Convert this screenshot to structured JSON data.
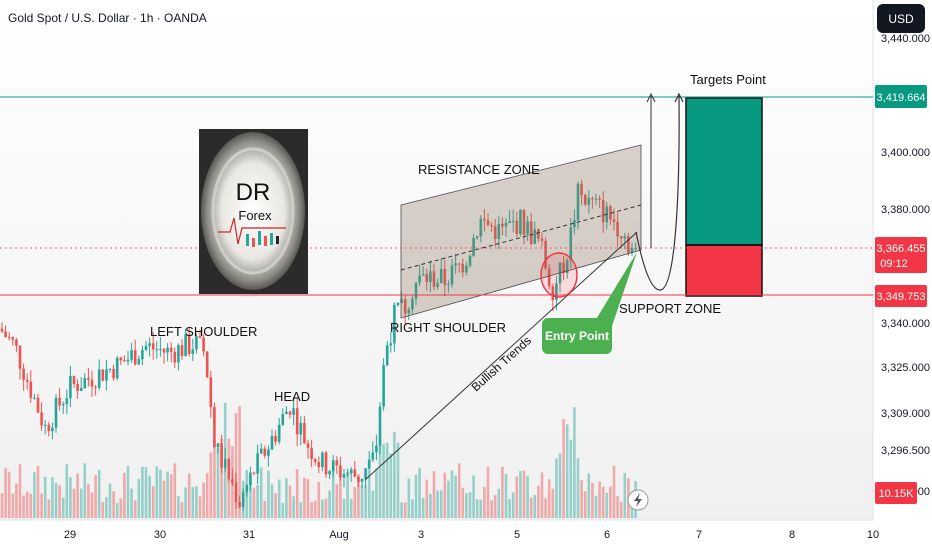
{
  "header": {
    "title": "Gold Spot / U.S. Dollar · 1h · OANDA",
    "currency_button": "USD"
  },
  "price_axis": {
    "ticks": [
      3440.0,
      3400.0,
      3380.0,
      3340.0,
      3325.0,
      3309.0,
      3296.5,
      3282.0
    ],
    "tick_labels": [
      "3,440.000",
      "3,400.000",
      "3,380.000",
      "3,340.000",
      "3,325.000",
      "3,309.000",
      "3,296.500",
      "3,282.000"
    ],
    "target_label": "3,419.664",
    "current_label": "3,366.455",
    "countdown": "09:12",
    "support_label": "3,349.753",
    "volume_label": "10.15K"
  },
  "time_axis": {
    "labels": [
      "29",
      "30",
      "31",
      "Aug",
      "3",
      "5",
      "6",
      "7",
      "8",
      "10"
    ]
  },
  "annotations": {
    "resistance_zone": "RESISTANCE ZONE",
    "support_zone": "SUPPORT ZONE",
    "left_shoulder": "LEFT SHOULDER",
    "head": "HEAD",
    "right_shoulder": "RIGHT SHOULDER",
    "bullish_trends": "Bullish Trends",
    "entry_point": "Entry Point",
    "targets_point": "Targets Point"
  },
  "logo": {
    "line1": "DR",
    "line2": "Forex"
  },
  "colors": {
    "up": "#26a69a",
    "down": "#ef5350",
    "target_box": "#089981",
    "stop_box": "#f23645",
    "entry_callout": "#4caf50",
    "zone_fill": "#b4a794",
    "background_top": "#ffffff",
    "background_bottom": "#f0f0f0"
  },
  "chart_data": {
    "type": "candlestick",
    "symbol": "Gold Spot / U.S. Dollar",
    "timeframe": "1h",
    "source": "OANDA",
    "target_price": 3419.664,
    "current_price": 3366.455,
    "support_price": 3349.753,
    "pattern": [
      "LEFT SHOULDER",
      "HEAD",
      "RIGHT SHOULDER"
    ],
    "zones": [
      "RESISTANCE ZONE",
      "SUPPORT ZONE"
    ],
    "keyframes": [
      [
        0,
        3338
      ],
      [
        15,
        3332
      ],
      [
        30,
        3318
      ],
      [
        45,
        3304
      ],
      [
        70,
        3318
      ],
      [
        95,
        3322
      ],
      [
        120,
        3326
      ],
      [
        145,
        3332
      ],
      [
        170,
        3330
      ],
      [
        195,
        3333
      ],
      [
        205,
        3330
      ],
      [
        215,
        3298
      ],
      [
        230,
        3286
      ],
      [
        240,
        3278
      ],
      [
        255,
        3290
      ],
      [
        275,
        3302
      ],
      [
        290,
        3312
      ],
      [
        305,
        3300
      ],
      [
        320,
        3292
      ],
      [
        340,
        3289
      ],
      [
        360,
        3287
      ],
      [
        375,
        3294
      ],
      [
        385,
        3330
      ],
      [
        395,
        3343
      ],
      [
        405,
        3346
      ],
      [
        415,
        3354
      ],
      [
        425,
        3356
      ],
      [
        445,
        3355
      ],
      [
        465,
        3362
      ],
      [
        480,
        3376
      ],
      [
        500,
        3372
      ],
      [
        520,
        3376
      ],
      [
        540,
        3368
      ],
      [
        552,
        3352
      ],
      [
        560,
        3357
      ],
      [
        568,
        3366
      ],
      [
        578,
        3385
      ],
      [
        600,
        3380
      ],
      [
        620,
        3374
      ],
      [
        635,
        3364
      ]
    ]
  }
}
